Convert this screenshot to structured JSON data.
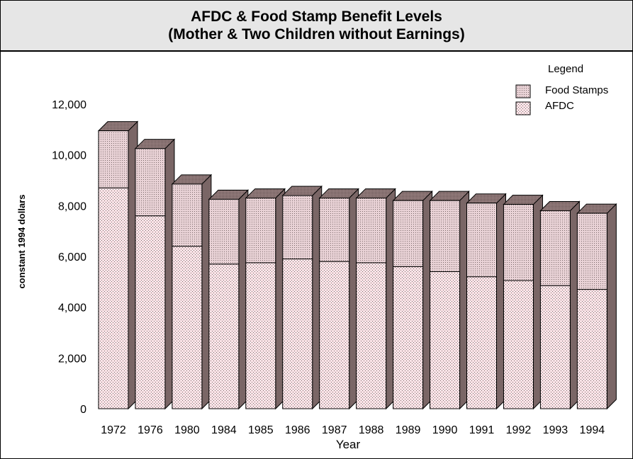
{
  "chart_data": {
    "type": "bar",
    "stacked": true,
    "three_d": true,
    "title": "AFDC & Food Stamp Benefit Levels",
    "subtitle": "(Mother & Two Children without Earnings)",
    "xlabel": "Year",
    "ylabel": "constant 1994 dollars",
    "ylim": [
      0,
      12000
    ],
    "yticks": [
      0,
      2000,
      4000,
      6000,
      8000,
      10000,
      12000
    ],
    "ytick_labels": [
      "0",
      "2,000",
      "4,000",
      "6,000",
      "8,000",
      "10,000",
      "12,000"
    ],
    "categories": [
      "1972",
      "1976",
      "1980",
      "1984",
      "1985",
      "1986",
      "1987",
      "1988",
      "1989",
      "1990",
      "1991",
      "1992",
      "1993",
      "1994"
    ],
    "series": [
      {
        "name": "AFDC",
        "values": [
          8700,
          7600,
          6400,
          5700,
          5750,
          5900,
          5800,
          5750,
          5600,
          5400,
          5200,
          5050,
          4850,
          4700
        ]
      },
      {
        "name": "Food Stamps",
        "values": [
          2250,
          2650,
          2450,
          2550,
          2550,
          2500,
          2500,
          2550,
          2600,
          2800,
          2900,
          3000,
          2950,
          3000
        ]
      }
    ],
    "legend": {
      "title": "Legend",
      "position": "top-right",
      "entries": [
        "Food Stamps",
        "AFDC"
      ]
    },
    "grid": false,
    "colors": {
      "afdc_face": "#fbe4e8",
      "food_face": "#e9d2d6",
      "side": "#7a6666",
      "top": "#977f7f",
      "dots": "#7a6a6a",
      "header_bg": "#e6e6e6"
    }
  }
}
